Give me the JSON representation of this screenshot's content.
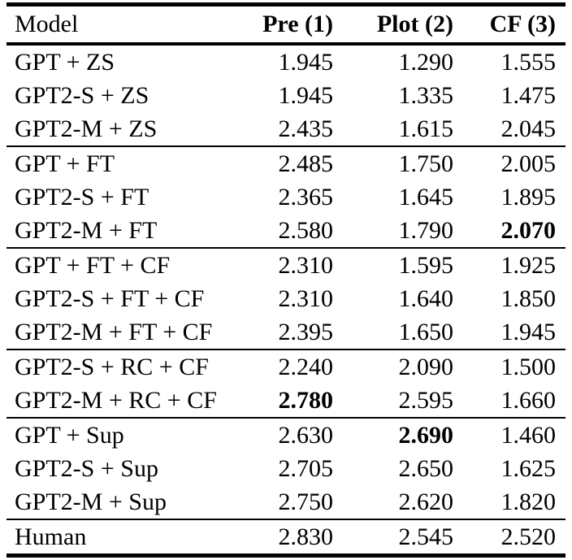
{
  "colors": {
    "background": "#ffffff",
    "text": "#000000",
    "rule": "#000000"
  },
  "table": {
    "columns": {
      "model": "Model",
      "pre": "Pre (1)",
      "plot": "Plot (2)",
      "cf": "CF (3)"
    },
    "groups": [
      {
        "rows": [
          {
            "model": "GPT + ZS",
            "pre": "1.945",
            "plot": "1.290",
            "cf": "1.555"
          },
          {
            "model": "GPT2-S + ZS",
            "pre": "1.945",
            "plot": "1.335",
            "cf": "1.475"
          },
          {
            "model": "GPT2-M + ZS",
            "pre": "2.435",
            "plot": "1.615",
            "cf": "2.045"
          }
        ]
      },
      {
        "rows": [
          {
            "model": "GPT + FT",
            "pre": "2.485",
            "plot": "1.750",
            "cf": "2.005"
          },
          {
            "model": "GPT2-S + FT",
            "pre": "2.365",
            "plot": "1.645",
            "cf": "1.895"
          },
          {
            "model": "GPT2-M + FT",
            "pre": "2.580",
            "plot": "1.790",
            "cf": "2.070"
          }
        ]
      },
      {
        "rows": [
          {
            "model": "GPT + FT + CF",
            "pre": "2.310",
            "plot": "1.595",
            "cf": "1.925"
          },
          {
            "model": "GPT2-S + FT + CF",
            "pre": "2.310",
            "plot": "1.640",
            "cf": "1.850"
          },
          {
            "model": "GPT2-M + FT + CF",
            "pre": "2.395",
            "plot": "1.650",
            "cf": "1.945"
          }
        ]
      },
      {
        "rows": [
          {
            "model": "GPT2-S + RC + CF",
            "pre": "2.240",
            "plot": "2.090",
            "cf": "1.500"
          },
          {
            "model": "GPT2-M + RC + CF",
            "pre": "2.780",
            "plot": "2.595",
            "cf": "1.660"
          }
        ]
      },
      {
        "rows": [
          {
            "model": "GPT + Sup",
            "pre": "2.630",
            "plot": "2.690",
            "cf": "1.460"
          },
          {
            "model": "GPT2-S + Sup",
            "pre": "2.705",
            "plot": "2.650",
            "cf": "1.625"
          },
          {
            "model": "GPT2-M + Sup",
            "pre": "2.750",
            "plot": "2.620",
            "cf": "1.820"
          }
        ]
      },
      {
        "rows": [
          {
            "model": "Human",
            "pre": "2.830",
            "plot": "2.545",
            "cf": "2.520"
          }
        ]
      }
    ],
    "bold_cells": [
      {
        "group": 1,
        "row": 2,
        "col": "cf"
      },
      {
        "group": 3,
        "row": 1,
        "col": "pre"
      },
      {
        "group": 4,
        "row": 0,
        "col": "plot"
      }
    ]
  }
}
